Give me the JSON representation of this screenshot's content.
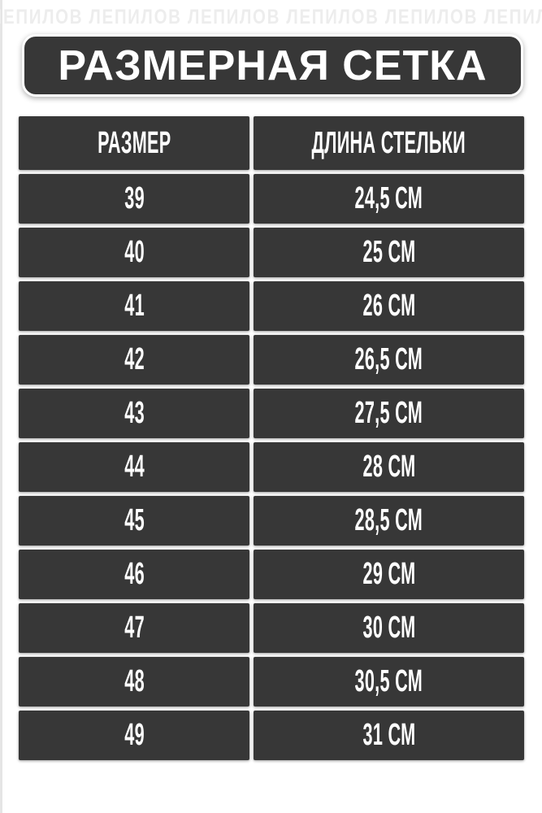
{
  "watermark": {
    "text": "ЛЕПИЛОВ ЛЕПИЛОВ ЛЕПИЛОВ ЛЕПИЛОВ ЛЕПИЛОВ ЛЕПИЛОВ ЛЕПИЛОВ ЛЕПИЛОВ"
  },
  "title": "РАЗМЕРНАЯ СЕТКА",
  "table": {
    "columns": [
      "РАЗМЕР",
      "ДЛИНА СТЕЛЬКИ"
    ],
    "rows": [
      {
        "size": "39",
        "length": "24,5 СМ"
      },
      {
        "size": "40",
        "length": "25 СМ"
      },
      {
        "size": "41",
        "length": "26 СМ"
      },
      {
        "size": "42",
        "length": "26,5 СМ"
      },
      {
        "size": "43",
        "length": "27,5 СМ"
      },
      {
        "size": "44",
        "length": "28 СМ"
      },
      {
        "size": "45",
        "length": "28,5 СМ"
      },
      {
        "size": "46",
        "length": "29 СМ"
      },
      {
        "size": "47",
        "length": "30 СМ"
      },
      {
        "size": "48",
        "length": "30,5 СМ"
      },
      {
        "size": "49",
        "length": "31 СМ"
      }
    ]
  },
  "chart_data": {
    "type": "table",
    "title": "РАЗМЕРНАЯ СЕТКА",
    "columns": [
      "РАЗМЕР",
      "ДЛИНА СТЕЛЬКИ"
    ],
    "sizes": [
      39,
      40,
      41,
      42,
      43,
      44,
      45,
      46,
      47,
      48,
      49
    ],
    "insole_length_cm": [
      24.5,
      25,
      26,
      26.5,
      27.5,
      28,
      28.5,
      29,
      30,
      30.5,
      31
    ]
  },
  "colors": {
    "cell_background": "#373737",
    "page_background": "#ffffff",
    "text": "#ffffff",
    "watermark": "#ededed",
    "edge_strip": "#e5e5e5"
  }
}
